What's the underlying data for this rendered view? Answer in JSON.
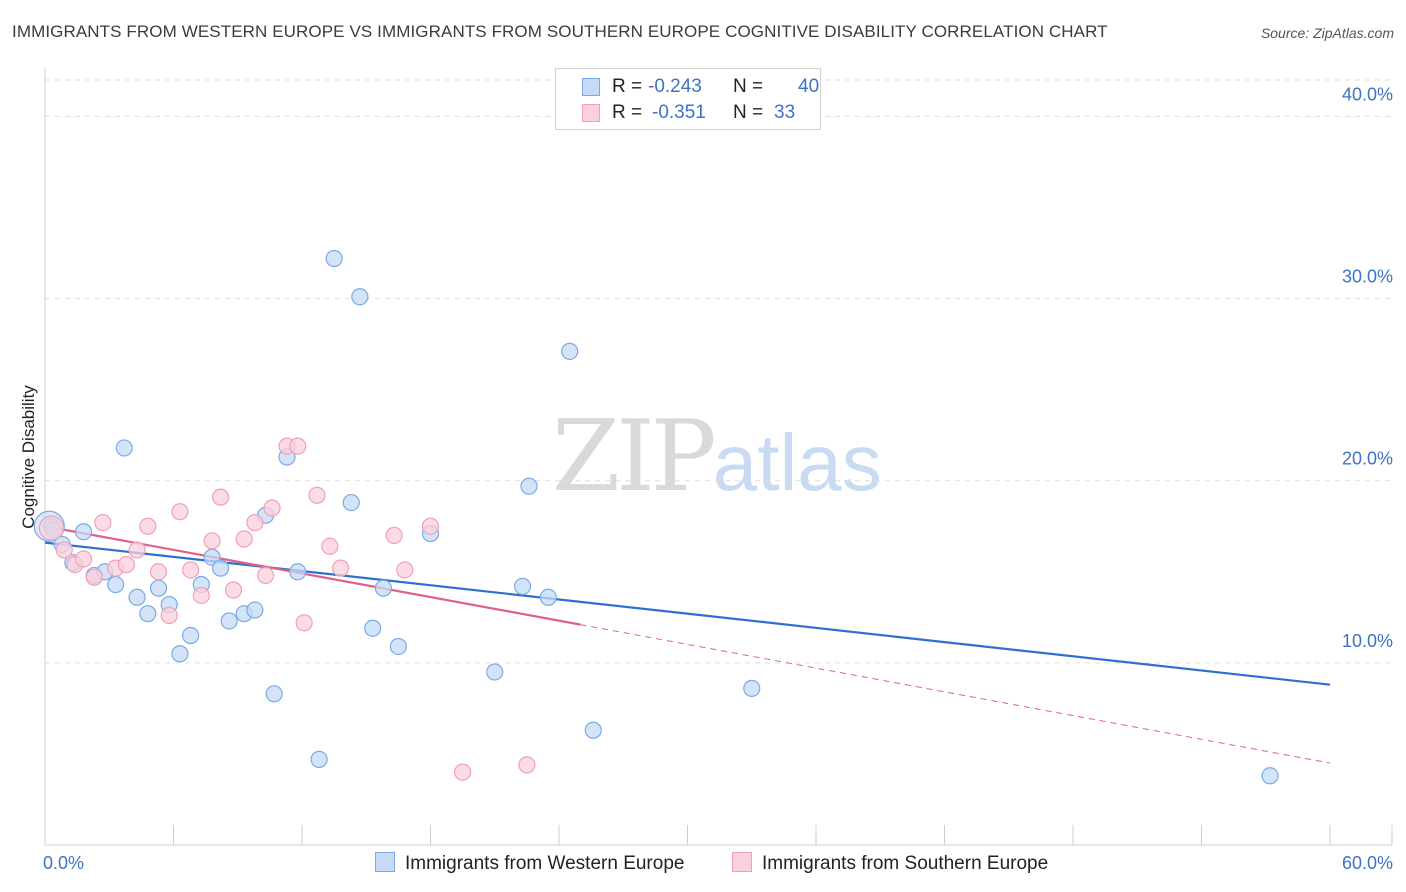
{
  "title": "IMMIGRANTS FROM WESTERN EUROPE VS IMMIGRANTS FROM SOUTHERN EUROPE COGNITIVE DISABILITY CORRELATION CHART",
  "source": "Source: ZipAtlas.com",
  "watermark": {
    "zip": "ZIP",
    "atlas": "atlas"
  },
  "legend": {
    "rows": [
      {
        "r_label": "R = ",
        "r_value": "-0.243",
        "n_label": "N = ",
        "n_value": "40"
      },
      {
        "r_label": "R = ",
        "r_value": "-0.351",
        "n_label": "N = ",
        "n_value": "33"
      }
    ]
  },
  "chart_data": {
    "type": "scatter",
    "title": "IMMIGRANTS FROM WESTERN EUROPE VS IMMIGRANTS FROM SOUTHERN EUROPE COGNITIVE DISABILITY CORRELATION CHART",
    "xlabel": "",
    "ylabel": "Cognitive Disability",
    "xlim": [
      0,
      60
    ],
    "ylim": [
      0,
      42
    ],
    "x_tick_labels": [
      "0.0%",
      "60.0%"
    ],
    "y_ticks": [
      10,
      20,
      30,
      40
    ],
    "y_tick_labels": [
      "10.0%",
      "20.0%",
      "30.0%",
      "40.0%"
    ],
    "grid": true,
    "legend_position": "top-center",
    "series": [
      {
        "name": "Immigrants from Western Europe",
        "color": "#7aaae6",
        "fill": "#c5dbf5",
        "line_color": "#2f6fd0",
        "R": -0.243,
        "N": 40,
        "trend": {
          "x": [
            0,
            60
          ],
          "y": [
            16.6,
            8.8
          ]
        },
        "points": [
          [
            0.3,
            17.5
          ],
          [
            0.8,
            16.5
          ],
          [
            1.3,
            15.5
          ],
          [
            1.8,
            17.2
          ],
          [
            2.3,
            14.8
          ],
          [
            2.8,
            15.0
          ],
          [
            3.3,
            14.3
          ],
          [
            3.7,
            21.8
          ],
          [
            4.3,
            13.6
          ],
          [
            4.8,
            12.7
          ],
          [
            5.3,
            14.1
          ],
          [
            5.8,
            13.2
          ],
          [
            6.3,
            10.5
          ],
          [
            6.8,
            11.5
          ],
          [
            7.3,
            14.3
          ],
          [
            7.8,
            15.8
          ],
          [
            8.2,
            15.2
          ],
          [
            8.6,
            12.3
          ],
          [
            9.3,
            12.7
          ],
          [
            9.8,
            12.9
          ],
          [
            10.3,
            18.1
          ],
          [
            10.7,
            8.3
          ],
          [
            11.3,
            21.3
          ],
          [
            11.8,
            15.0
          ],
          [
            12.8,
            4.7
          ],
          [
            13.5,
            32.2
          ],
          [
            14.3,
            18.8
          ],
          [
            14.7,
            30.1
          ],
          [
            15.3,
            11.9
          ],
          [
            15.8,
            14.1
          ],
          [
            16.5,
            10.9
          ],
          [
            18.0,
            17.1
          ],
          [
            21.0,
            9.5
          ],
          [
            22.3,
            14.2
          ],
          [
            22.6,
            19.7
          ],
          [
            23.5,
            13.6
          ],
          [
            24.5,
            27.1
          ],
          [
            25.6,
            6.3
          ],
          [
            33.0,
            8.6
          ],
          [
            57.2,
            3.8
          ]
        ]
      },
      {
        "name": "Immigrants from Southern Europe",
        "color": "#f0a0b8",
        "fill": "#f9d0dc",
        "line_color": "#e0608a",
        "R": -0.351,
        "N": 33,
        "trend": {
          "x": [
            0,
            25
          ],
          "y": [
            17.5,
            12.1
          ]
        },
        "trend_dashed": {
          "x": [
            25,
            60
          ],
          "y": [
            12.1,
            4.5
          ]
        },
        "points": [
          [
            0.4,
            17.3
          ],
          [
            0.9,
            16.2
          ],
          [
            1.4,
            15.4
          ],
          [
            1.8,
            15.7
          ],
          [
            2.3,
            14.7
          ],
          [
            2.7,
            17.7
          ],
          [
            3.3,
            15.2
          ],
          [
            3.8,
            15.4
          ],
          [
            4.3,
            16.2
          ],
          [
            4.8,
            17.5
          ],
          [
            5.3,
            15.0
          ],
          [
            5.8,
            12.6
          ],
          [
            6.3,
            18.3
          ],
          [
            6.8,
            15.1
          ],
          [
            7.3,
            13.7
          ],
          [
            7.8,
            16.7
          ],
          [
            8.2,
            19.1
          ],
          [
            8.8,
            14.0
          ],
          [
            9.3,
            16.8
          ],
          [
            9.8,
            17.7
          ],
          [
            10.3,
            14.8
          ],
          [
            10.6,
            18.5
          ],
          [
            11.3,
            21.9
          ],
          [
            11.8,
            21.9
          ],
          [
            12.1,
            12.2
          ],
          [
            12.7,
            19.2
          ],
          [
            13.3,
            16.4
          ],
          [
            13.8,
            15.2
          ],
          [
            16.3,
            17.0
          ],
          [
            16.8,
            15.1
          ],
          [
            18.0,
            17.5
          ],
          [
            19.5,
            4.0
          ],
          [
            22.5,
            4.4
          ]
        ]
      }
    ]
  }
}
